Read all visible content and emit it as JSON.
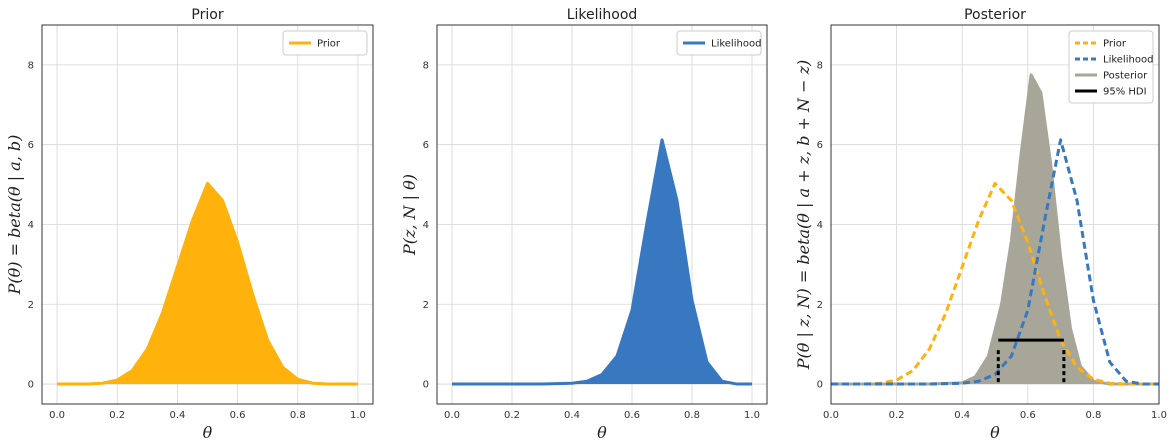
{
  "chart_data": [
    {
      "type": "area",
      "title": "Prior",
      "xlabel": "θ",
      "ylabel": "P(θ) = beta(θ | a, b)",
      "xlim": [
        -0.05,
        1.05
      ],
      "ylim": [
        -0.5,
        9.0
      ],
      "xticks": [
        "0.0",
        "0.2",
        "0.4",
        "0.6",
        "0.8",
        "1.0"
      ],
      "yticks": [
        "0",
        "2",
        "4",
        "6",
        "8"
      ],
      "grid": true,
      "legend_position": "top-right",
      "series": [
        {
          "name": "Prior",
          "color": "#ffb20b",
          "style": "solid-filled",
          "x": [
            0.0,
            0.05,
            0.1,
            0.15,
            0.2,
            0.25,
            0.3,
            0.35,
            0.4,
            0.45,
            0.5,
            0.55,
            0.6,
            0.65,
            0.7,
            0.75,
            0.8,
            0.85,
            0.9,
            0.95,
            1.0
          ],
          "y": [
            0.0,
            0.0,
            0.0,
            0.02,
            0.1,
            0.34,
            0.88,
            1.78,
            2.94,
            4.1,
            5.03,
            4.6,
            3.55,
            2.25,
            1.1,
            0.42,
            0.12,
            0.02,
            0.0,
            0.0,
            0.0
          ]
        }
      ]
    },
    {
      "type": "area",
      "title": "Likelihood",
      "xlabel": "θ",
      "ylabel": "P(z, N | θ)",
      "xlim": [
        -0.05,
        1.05
      ],
      "ylim": [
        -0.5,
        9.0
      ],
      "xticks": [
        "0.0",
        "0.2",
        "0.4",
        "0.6",
        "0.8",
        "1.0"
      ],
      "yticks": [
        "0",
        "2",
        "4",
        "6",
        "8"
      ],
      "grid": true,
      "legend_position": "top-right",
      "series": [
        {
          "name": "Likelihood",
          "color": "#3878c0",
          "style": "solid-filled",
          "x": [
            0.0,
            0.1,
            0.2,
            0.3,
            0.4,
            0.45,
            0.5,
            0.55,
            0.6,
            0.65,
            0.7,
            0.75,
            0.8,
            0.85,
            0.9,
            0.95,
            1.0
          ],
          "y": [
            0.0,
            0.0,
            0.0,
            0.0,
            0.02,
            0.07,
            0.24,
            0.7,
            1.85,
            4.05,
            6.12,
            4.6,
            2.1,
            0.55,
            0.07,
            0.0,
            0.0
          ]
        }
      ]
    },
    {
      "type": "area",
      "title": "Posterior",
      "xlabel": "θ",
      "ylabel": "P(θ | z, N) = beta(θ | a + z, b + N − z)",
      "xlim": [
        0.0,
        1.0
      ],
      "ylim": [
        -0.5,
        9.0
      ],
      "xticks": [
        "0.0",
        "0.2",
        "0.4",
        "0.6",
        "0.8",
        "1.0"
      ],
      "yticks": [
        "0",
        "2",
        "4",
        "6",
        "8"
      ],
      "grid": true,
      "legend_position": "top-right",
      "series": [
        {
          "name": "Prior",
          "color": "#ffb20b",
          "style": "dashed",
          "x": [
            0.0,
            0.05,
            0.1,
            0.15,
            0.2,
            0.25,
            0.3,
            0.35,
            0.4,
            0.45,
            0.5,
            0.55,
            0.6,
            0.65,
            0.7,
            0.75,
            0.8,
            0.85,
            0.9,
            0.95,
            1.0
          ],
          "y": [
            0.0,
            0.0,
            0.0,
            0.02,
            0.1,
            0.34,
            0.88,
            1.78,
            2.94,
            4.1,
            5.03,
            4.6,
            3.55,
            2.25,
            1.1,
            0.42,
            0.12,
            0.02,
            0.0,
            0.0,
            0.0
          ]
        },
        {
          "name": "Likelihood",
          "color": "#3878c0",
          "style": "dashed",
          "x": [
            0.0,
            0.1,
            0.2,
            0.3,
            0.4,
            0.45,
            0.5,
            0.55,
            0.6,
            0.65,
            0.7,
            0.75,
            0.8,
            0.85,
            0.9,
            0.95,
            1.0
          ],
          "y": [
            0.0,
            0.0,
            0.0,
            0.0,
            0.02,
            0.07,
            0.24,
            0.7,
            1.85,
            4.05,
            6.12,
            4.6,
            2.1,
            0.55,
            0.07,
            0.0,
            0.0
          ]
        },
        {
          "name": "Posterior",
          "color": "#a8a698",
          "style": "solid-filled",
          "x": [
            0.0,
            0.3,
            0.4,
            0.44,
            0.48,
            0.52,
            0.55,
            0.58,
            0.61,
            0.64,
            0.67,
            0.7,
            0.73,
            0.76,
            0.8,
            0.85,
            1.0
          ],
          "y": [
            0.0,
            0.0,
            0.03,
            0.18,
            0.7,
            2.0,
            3.6,
            5.8,
            7.75,
            7.3,
            5.5,
            3.2,
            1.4,
            0.45,
            0.07,
            0.0,
            0.0
          ]
        }
      ],
      "hdi": {
        "name": "95% HDI",
        "color": "#000000",
        "low": 0.51,
        "high": 0.71,
        "y": 1.1
      }
    }
  ]
}
